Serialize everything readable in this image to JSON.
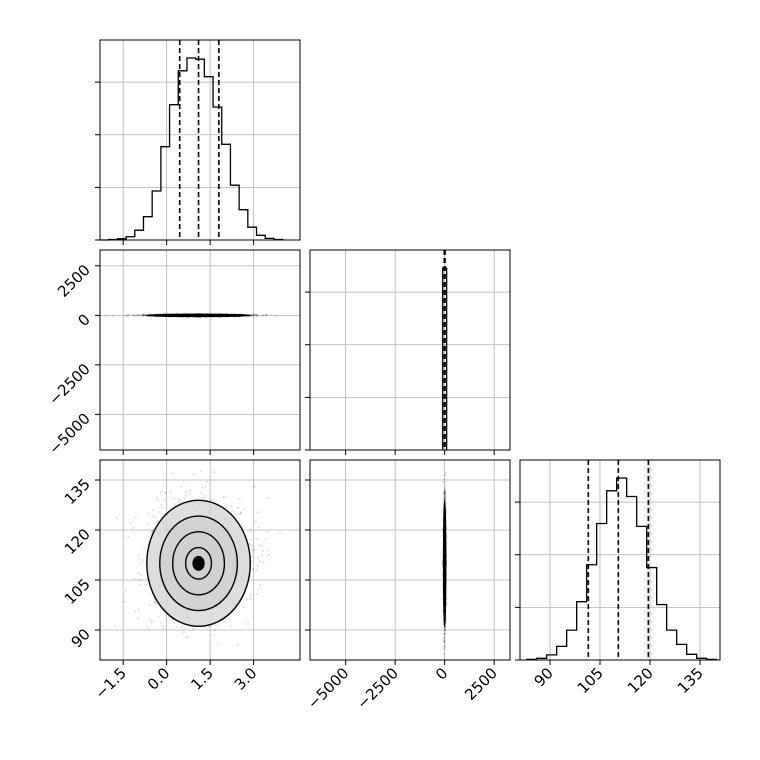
{
  "chart_data": {
    "type": "corner",
    "parameters": 3,
    "grid": true,
    "colors": {
      "line": "#000000",
      "grid": "#b0b0b0",
      "frame": "#000000"
    },
    "axes": {
      "p0": {
        "range": [
          -2.3,
          4.6
        ],
        "ticks": [
          -1.5,
          0.0,
          1.5,
          3.0
        ],
        "tick_labels": [
          "−1.5",
          "0.0",
          "1.5",
          "3.0"
        ]
      },
      "p1": {
        "range": [
          -6800,
          3300
        ],
        "ticks": [
          -5000,
          -2500,
          0,
          2500
        ],
        "tick_labels": [
          "−5000",
          "−2500",
          "0",
          "2500"
        ]
      },
      "p2": {
        "range": [
          81,
          141
        ],
        "ticks": [
          90,
          105,
          120,
          135
        ],
        "tick_labels": [
          "90",
          "105",
          "120",
          "135"
        ]
      }
    },
    "histograms": [
      {
        "param": "p0",
        "bin_edges": [
          -2.3,
          -2.0,
          -1.7,
          -1.4,
          -1.1,
          -0.8,
          -0.5,
          -0.2,
          0.1,
          0.4,
          0.7,
          1.0,
          1.3,
          1.6,
          1.9,
          2.2,
          2.5,
          2.8,
          3.1,
          3.4,
          3.7,
          4.0
        ],
        "counts": [
          0,
          2,
          5,
          14,
          42,
          100,
          210,
          400,
          580,
          725,
          780,
          775,
          700,
          570,
          410,
          235,
          130,
          55,
          20,
          7,
          2
        ],
        "quantiles": [
          0.45,
          1.1,
          1.8
        ]
      },
      {
        "param": "p1",
        "bin_edges": [
          -100,
          100
        ],
        "counts": [
          1000
        ],
        "quantiles": [
          -20,
          0,
          20
        ]
      },
      {
        "param": "p2",
        "bin_edges": [
          83,
          86,
          89,
          92,
          95,
          98,
          101,
          104,
          107,
          110,
          113,
          116,
          119,
          122,
          125,
          128,
          131,
          134,
          137,
          140
        ],
        "counts": [
          2,
          6,
          18,
          48,
          105,
          205,
          335,
          480,
          595,
          640,
          575,
          470,
          325,
          195,
          105,
          55,
          20,
          6,
          2
        ],
        "quantiles": [
          101.5,
          110.5,
          119.5
        ]
      }
    ],
    "pair_panels": [
      {
        "x": "p0",
        "y": "p1",
        "center": [
          1.1,
          0
        ],
        "spread": [
          0.85,
          25
        ],
        "contour_levels": [
          "0.5",
          "1.0",
          "1.5",
          "2.0"
        ]
      },
      {
        "x": "p0",
        "y": "p2",
        "center": [
          1.1,
          110
        ],
        "spread": [
          0.85,
          9
        ],
        "contour_levels": [
          "0.5",
          "1.0",
          "1.5",
          "2.0"
        ]
      },
      {
        "x": "p1",
        "y": "p2",
        "center": [
          0,
          110
        ],
        "spread": [
          25,
          9
        ],
        "contour_levels": [
          "0.5",
          "1.0",
          "1.5",
          "2.0"
        ]
      }
    ]
  }
}
